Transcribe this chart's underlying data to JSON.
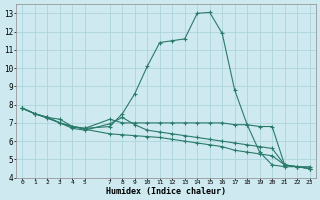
{
  "xlabel": "Humidex (Indice chaleur)",
  "bg_color": "#ceeaf0",
  "grid_color": "#aed4dc",
  "line_color": "#2a7a6a",
  "xlim": [
    -0.5,
    23.5
  ],
  "ylim": [
    4,
    13.5
  ],
  "xticks": [
    0,
    1,
    2,
    3,
    4,
    5,
    7,
    8,
    9,
    10,
    11,
    12,
    13,
    14,
    15,
    16,
    17,
    18,
    19,
    20,
    21,
    22,
    23
  ],
  "yticks": [
    4,
    5,
    6,
    7,
    8,
    9,
    10,
    11,
    12,
    13
  ],
  "line1_x": [
    0,
    1,
    2,
    3,
    4,
    5,
    7,
    8,
    9,
    10,
    11,
    12,
    13,
    14,
    15,
    16,
    17,
    18,
    19,
    20,
    21,
    22,
    23
  ],
  "line1_y": [
    7.8,
    7.5,
    7.3,
    7.0,
    6.8,
    6.7,
    6.8,
    7.5,
    8.6,
    10.1,
    11.4,
    11.5,
    11.6,
    13.0,
    13.05,
    11.9,
    8.8,
    6.9,
    5.4,
    4.7,
    4.6,
    4.6,
    4.6
  ],
  "line2_x": [
    0,
    1,
    2,
    3,
    4,
    5,
    7,
    8,
    9,
    10,
    11,
    12,
    13,
    14,
    15,
    16,
    17,
    18,
    19,
    20,
    21,
    22,
    23
  ],
  "line2_y": [
    7.8,
    7.5,
    7.3,
    7.0,
    6.8,
    6.65,
    6.4,
    6.35,
    6.3,
    6.25,
    6.2,
    6.1,
    6.0,
    5.9,
    5.8,
    5.7,
    5.5,
    5.4,
    5.3,
    5.2,
    4.7,
    4.6,
    4.5
  ],
  "line3_x": [
    0,
    1,
    2,
    3,
    4,
    5,
    7,
    8,
    9,
    10,
    11,
    12,
    13,
    14,
    15,
    16,
    17,
    18,
    19,
    20,
    21,
    22,
    23
  ],
  "line3_y": [
    7.8,
    7.5,
    7.25,
    7.0,
    6.7,
    6.6,
    6.95,
    7.3,
    6.9,
    6.6,
    6.5,
    6.4,
    6.3,
    6.2,
    6.1,
    6.0,
    5.9,
    5.8,
    5.7,
    5.6,
    4.7,
    4.6,
    4.5
  ],
  "line4_x": [
    0,
    1,
    2,
    3,
    4,
    5,
    7,
    8,
    9,
    10,
    11,
    12,
    13,
    14,
    15,
    16,
    17,
    18,
    19,
    20,
    21,
    22,
    23
  ],
  "line4_y": [
    7.8,
    7.5,
    7.3,
    7.2,
    6.8,
    6.7,
    7.2,
    7.0,
    7.0,
    7.0,
    7.0,
    7.0,
    7.0,
    7.0,
    7.0,
    7.0,
    6.9,
    6.9,
    6.8,
    6.8,
    4.7,
    4.6,
    4.5
  ]
}
